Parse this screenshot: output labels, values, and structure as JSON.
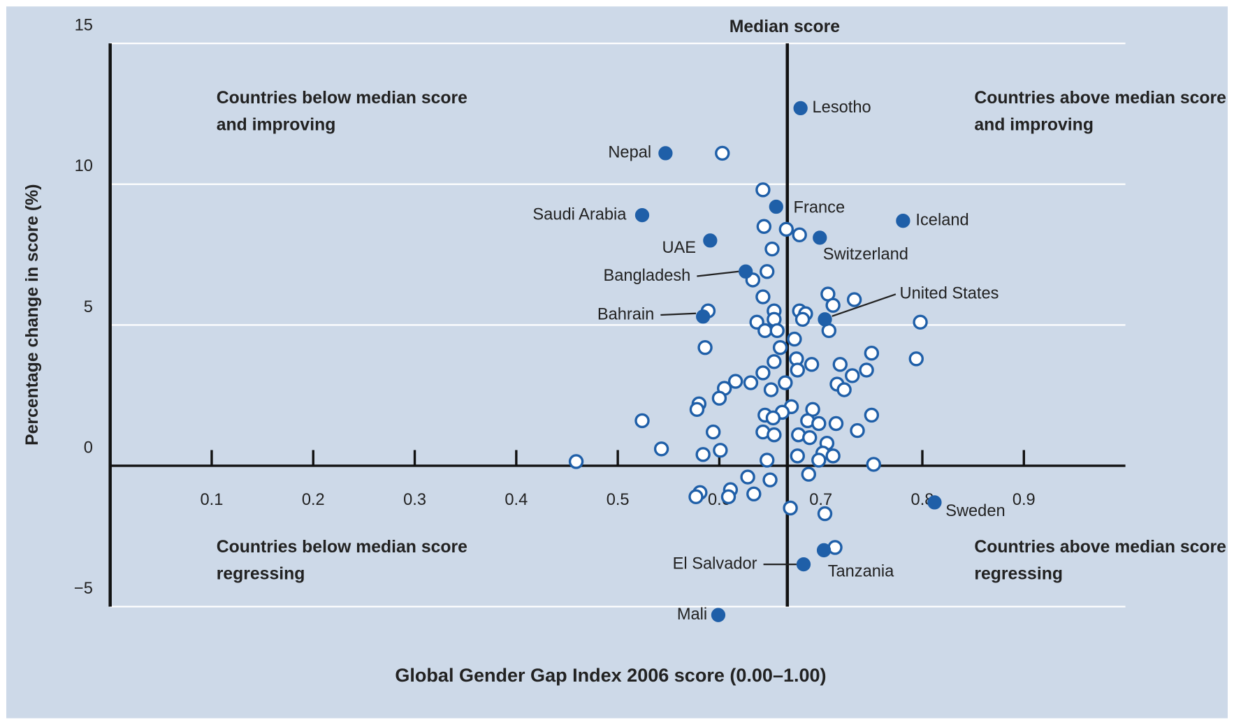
{
  "chart_data": {
    "type": "scatter",
    "x_label": "Global Gender Gap Index 2006 score (0.00–1.00)",
    "y_label": "Percentage change in score (%)",
    "median_label": "Median score",
    "median": 0.667,
    "annotations": [
      "Countries below median score and improving",
      "Countries above median score and improving",
      "Countries below median score regressing",
      "Countries above median score regressing"
    ],
    "xlim": [
      0,
      1
    ],
    "xticks": [
      0.1,
      0.2,
      0.3,
      0.4,
      0.5,
      0.6,
      0.7,
      0.8,
      0.9
    ],
    "ylim": [
      -5,
      15
    ],
    "yticks": [
      {
        "value": -5,
        "label": "−5"
      },
      0,
      5,
      10,
      15
    ],
    "grid": true,
    "series": [
      {
        "color": "#1f5fa8",
        "filled": false,
        "x": [
          0.603,
          0.643,
          0.644,
          0.666,
          0.679,
          0.652,
          0.647,
          0.633,
          0.643,
          0.707,
          0.712,
          0.733,
          0.589,
          0.654,
          0.679,
          0.685,
          0.682,
          0.654,
          0.637,
          0.645,
          0.657,
          0.708,
          0.798,
          0.586,
          0.674,
          0.66,
          0.75,
          0.794,
          0.654,
          0.676,
          0.691,
          0.719,
          0.677,
          0.745,
          0.643,
          0.731,
          0.616,
          0.631,
          0.665,
          0.605,
          0.716,
          0.723,
          0.651,
          0.6,
          0.58,
          0.578,
          0.671,
          0.692,
          0.645,
          0.662,
          0.653,
          0.75,
          0.524,
          0.687,
          0.698,
          0.715,
          0.736,
          0.594,
          0.643,
          0.654,
          0.678,
          0.689,
          0.706,
          0.543,
          0.601,
          0.584,
          0.702,
          0.712,
          0.677,
          0.459,
          0.647,
          0.698,
          0.752,
          0.688,
          0.628,
          0.65,
          0.634,
          0.611,
          0.581,
          0.577,
          0.609,
          0.67,
          0.704,
          0.714
        ],
        "values": [
          11.1,
          9.8,
          8.5,
          8.4,
          8.2,
          7.7,
          6.9,
          6.6,
          6.0,
          6.1,
          5.7,
          5.9,
          5.5,
          5.5,
          5.5,
          5.4,
          5.2,
          5.2,
          5.1,
          4.8,
          4.8,
          4.8,
          5.1,
          4.2,
          4.5,
          4.2,
          4.0,
          3.8,
          3.7,
          3.8,
          3.6,
          3.6,
          3.4,
          3.4,
          3.3,
          3.2,
          3.0,
          2.95,
          2.95,
          2.75,
          2.9,
          2.7,
          2.7,
          2.4,
          2.2,
          2.0,
          2.1,
          2.0,
          1.8,
          1.9,
          1.7,
          1.8,
          1.6,
          1.6,
          1.5,
          1.5,
          1.25,
          1.2,
          1.2,
          1.1,
          1.1,
          1.0,
          0.8,
          0.6,
          0.55,
          0.4,
          0.45,
          0.35,
          0.35,
          0.15,
          0.2,
          0.2,
          0.05,
          -0.3,
          -0.4,
          -0.5,
          -1.0,
          -0.85,
          -0.95,
          -1.1,
          -1.1,
          -1.5,
          -1.7,
          -2.9
        ]
      },
      {
        "color": "#1f5fa8",
        "filled": true,
        "labels": [
          "Lesotho",
          "Nepal",
          "France",
          "Saudi Arabia",
          "Iceland",
          "UAE",
          "Switzerland",
          "Bangladesh",
          "Bahrain",
          "United States",
          "Sweden",
          "Tanzania",
          "El Salvador",
          "Mali"
        ],
        "x": [
          0.68,
          0.547,
          0.656,
          0.524,
          0.781,
          0.591,
          0.699,
          0.626,
          0.584,
          0.704,
          0.812,
          0.703,
          0.683,
          0.599
        ],
        "values": [
          12.7,
          11.1,
          9.2,
          8.9,
          8.7,
          8.0,
          8.1,
          6.9,
          5.3,
          5.2,
          -1.3,
          -3.0,
          -3.5,
          -5.3
        ]
      }
    ]
  }
}
